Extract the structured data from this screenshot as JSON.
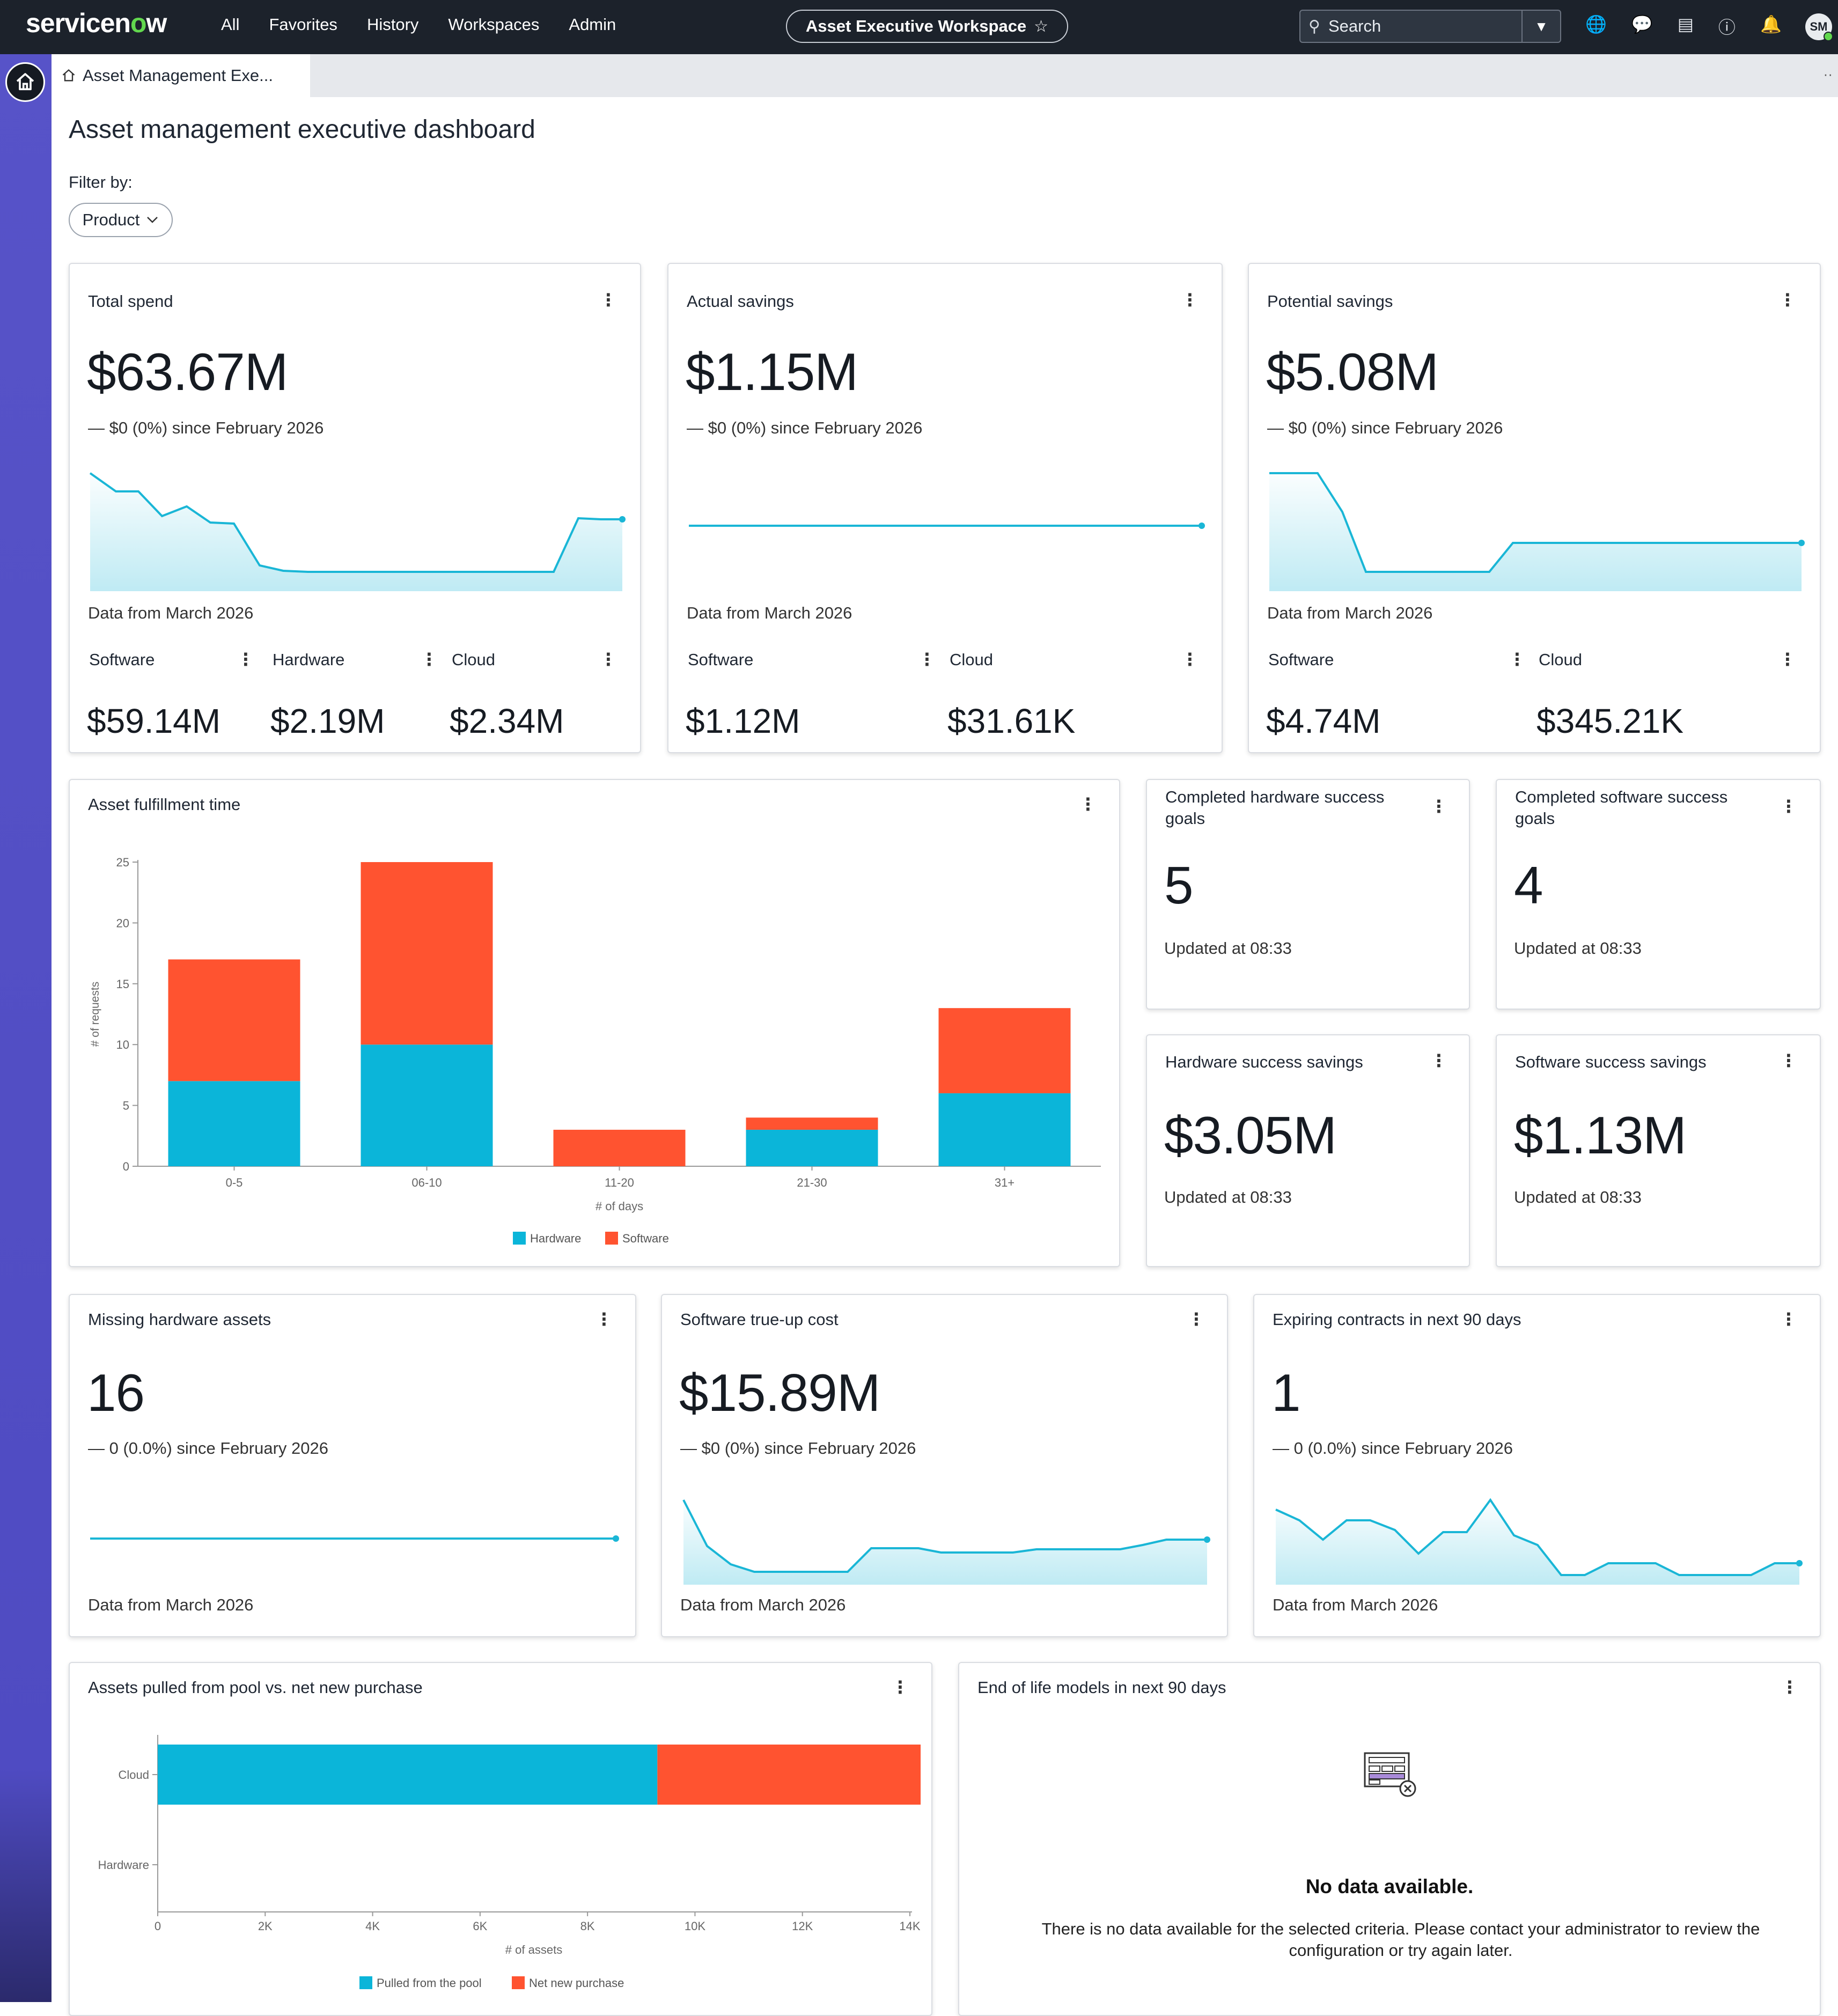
{
  "nav": {
    "brand_a": "servicen",
    "brand_o": "o",
    "brand_b": "w",
    "links": [
      "All",
      "Favorites",
      "History",
      "Workspaces",
      "Admin"
    ],
    "workspace": "Asset Executive Workspace",
    "search_placeholder": "Search",
    "avatar": "SM"
  },
  "tab": {
    "label": "Asset Management Exe..."
  },
  "page": {
    "title": "Asset management executive dashboard",
    "filter_label": "Filter by:",
    "filter_button": "Product"
  },
  "kpis": {
    "total_spend": {
      "title": "Total spend",
      "value": "$63.67M",
      "delta": "$0 (0%) since February 2026",
      "data_from": "Data from March 2026",
      "breakdown": [
        {
          "label": "Software",
          "value": "$59.14M"
        },
        {
          "label": "Hardware",
          "value": "$2.19M"
        },
        {
          "label": "Cloud",
          "value": "$2.34M"
        }
      ]
    },
    "actual_savings": {
      "title": "Actual savings",
      "value": "$1.15M",
      "delta": "$0 (0%) since February 2026",
      "data_from": "Data from March 2026",
      "breakdown": [
        {
          "label": "Software",
          "value": "$1.12M"
        },
        {
          "label": "Cloud",
          "value": "$31.61K"
        }
      ]
    },
    "potential_savings": {
      "title": "Potential savings",
      "value": "$5.08M",
      "delta": "$0 (0%) since February 2026",
      "data_from": "Data from March 2026",
      "breakdown": [
        {
          "label": "Software",
          "value": "$4.74M"
        },
        {
          "label": "Cloud",
          "value": "$345.21K"
        }
      ]
    },
    "hw_goals": {
      "title": "Completed hardware success goals",
      "value": "5",
      "updated": "Updated at 08:33"
    },
    "sw_goals": {
      "title": "Completed software success goals",
      "value": "4",
      "updated": "Updated at 08:33"
    },
    "hw_savings": {
      "title": "Hardware success savings",
      "value": "$3.05M",
      "updated": "Updated at 08:33"
    },
    "sw_savings": {
      "title": "Software success savings",
      "value": "$1.13M",
      "updated": "Updated at 08:33"
    },
    "missing_hw": {
      "title": "Missing hardware assets",
      "value": "16",
      "delta": "0 (0.0%) since February 2026",
      "data_from": "Data from March 2026"
    },
    "trueup": {
      "title": "Software true-up cost",
      "value": "$15.89M",
      "delta": "$0 (0%) since February 2026",
      "data_from": "Data from March 2026"
    },
    "expiring": {
      "title": "Expiring contracts in next 90 days",
      "value": "1",
      "delta": "0 (0.0%) since February 2026",
      "data_from": "Data from March 2026"
    }
  },
  "fulfillment": {
    "title": "Asset fulfillment time"
  },
  "pool": {
    "title": "Assets pulled from pool vs. net new purchase"
  },
  "eol": {
    "title": "End of life models in next 90 days",
    "nodata_title": "No data available.",
    "nodata_text": "There is no data available for the selected criteria. Please contact your administrator to review the configuration or try again later."
  },
  "colors": {
    "hardware": "#0bb5d9",
    "software": "#ff5330",
    "spark": "#1ab6d6"
  },
  "chart_data": [
    {
      "type": "bar",
      "stacked": true,
      "categories": [
        "0-5",
        "06-10",
        "11-20",
        "21-30",
        "31+"
      ],
      "series": [
        {
          "name": "Hardware",
          "values": [
            7,
            10,
            0,
            3,
            6
          ]
        },
        {
          "name": "Software",
          "values": [
            10,
            15,
            3,
            1,
            7
          ]
        }
      ],
      "xlabel": "# of days",
      "ylabel": "# of requests",
      "ylim": [
        0,
        25
      ],
      "yticks": [
        0,
        5,
        10,
        15,
        20,
        25
      ],
      "legend": "bottom-center"
    },
    {
      "type": "bar",
      "orientation": "horizontal",
      "stacked": true,
      "categories": [
        "Cloud",
        "Hardware"
      ],
      "series": [
        {
          "name": "Pulled from the pool",
          "values": [
            9300,
            0
          ]
        },
        {
          "name": "Net new purchase",
          "values": [
            4900,
            0
          ]
        }
      ],
      "xlabel": "# of assets",
      "xlim": [
        0,
        14000
      ],
      "xticks": [
        "0",
        "2K",
        "4K",
        "6K",
        "8K",
        "10K",
        "12K",
        "14K"
      ],
      "legend": "bottom-center"
    }
  ]
}
